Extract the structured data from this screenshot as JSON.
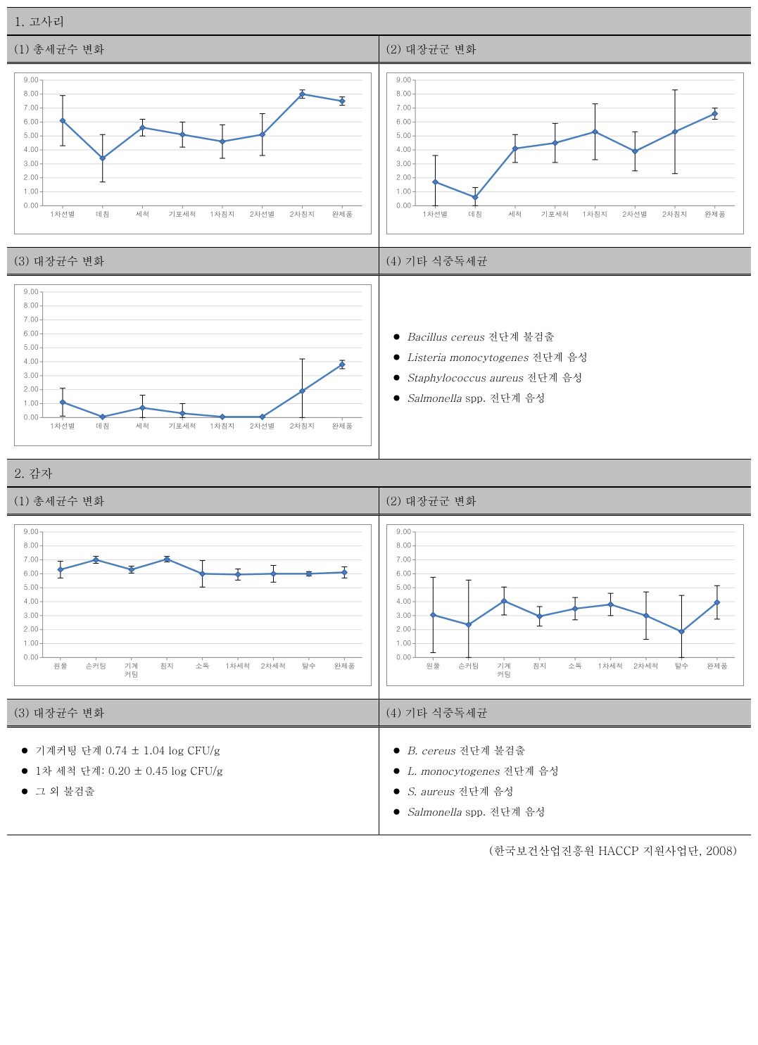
{
  "sections": {
    "s1": {
      "title": "1. 고사리"
    },
    "s2": {
      "title": "2. 감자"
    }
  },
  "headers": {
    "h1": "(1) 총세균수 변화",
    "h2": "(2) 대장균군 변화",
    "h3": "(3) 대장균수 변화",
    "h4": "(4) 기타 식중독세균"
  },
  "chart1_1": {
    "ylim": [
      0,
      9
    ],
    "ystep": 1,
    "xlabels": [
      "1차선별",
      "데침",
      "세척",
      "기포세척",
      "1차침지",
      "2차선별",
      "2차침지",
      "완제품"
    ],
    "values": [
      6.1,
      3.4,
      5.6,
      5.1,
      4.6,
      5.1,
      8.0,
      7.5
    ],
    "err": [
      1.8,
      1.7,
      0.6,
      0.9,
      1.2,
      1.5,
      0.3,
      0.3
    ],
    "line_color": "#4a7ebb",
    "bg": "#ffffff",
    "grid": "#d9d9d9",
    "label_fs": 10
  },
  "chart1_2": {
    "ylim": [
      0,
      9
    ],
    "ystep": 1,
    "xlabels": [
      "1차선별",
      "데침",
      "세척",
      "기포세척",
      "1차침지",
      "2차선별",
      "2차침지",
      "완제품"
    ],
    "values": [
      1.7,
      0.6,
      4.1,
      4.5,
      5.3,
      3.9,
      5.3,
      6.6
    ],
    "err": [
      1.9,
      0.7,
      1.0,
      1.4,
      2.0,
      1.4,
      3.0,
      0.4
    ],
    "line_color": "#4a7ebb",
    "bg": "#ffffff",
    "grid": "#d9d9d9",
    "label_fs": 10
  },
  "chart1_3": {
    "ylim": [
      0,
      9
    ],
    "ystep": 1,
    "xlabels": [
      "1차선별",
      "데침",
      "세척",
      "기포세척",
      "1차침지",
      "2차선별",
      "2차침지",
      "완제품"
    ],
    "values": [
      1.1,
      0.05,
      0.7,
      0.3,
      0.05,
      0.05,
      1.9,
      3.8
    ],
    "err": [
      1.0,
      0.0,
      0.9,
      0.7,
      0.0,
      0.0,
      2.3,
      0.3
    ],
    "line_color": "#4a7ebb",
    "bg": "#ffffff",
    "grid": "#d9d9d9",
    "label_fs": 10
  },
  "text1_4": [
    {
      "italic": "Bacillus cereus",
      "rest": " 전단계 불검출"
    },
    {
      "italic": "Listeria monocytogenes",
      "rest": " 전단계 음성"
    },
    {
      "italic": "Staphylococcus aureus",
      "rest": " 전단계 음성"
    },
    {
      "italic": "Salmonella",
      "rest": " spp. 전단계 음성"
    }
  ],
  "chart2_1": {
    "ylim": [
      0,
      9
    ],
    "ystep": 1,
    "xlabels": [
      "원물",
      "손커팅",
      "기계\n커팅",
      "침지",
      "소독",
      "1차세척",
      "2차세척",
      "탈수",
      "완제품"
    ],
    "values": [
      6.3,
      7.0,
      6.3,
      7.05,
      6.0,
      5.95,
      6.0,
      6.0,
      6.1
    ],
    "err": [
      0.6,
      0.25,
      0.25,
      0.2,
      0.95,
      0.4,
      0.6,
      0.15,
      0.4
    ],
    "line_color": "#4a7ebb",
    "bg": "#ffffff",
    "grid": "#d9d9d9",
    "label_fs": 10
  },
  "chart2_2": {
    "ylim": [
      0,
      9
    ],
    "ystep": 1,
    "xlabels": [
      "원물",
      "손커팅",
      "기계\n커팅",
      "침지",
      "소독",
      "1차세척",
      "2차세척",
      "탈수",
      "완제품"
    ],
    "values": [
      3.05,
      2.35,
      4.05,
      2.95,
      3.5,
      3.8,
      3.0,
      1.85,
      3.95
    ],
    "err": [
      2.7,
      3.2,
      1.0,
      0.7,
      0.8,
      0.8,
      1.7,
      2.6,
      1.2
    ],
    "line_color": "#4a7ebb",
    "bg": "#ffffff",
    "grid": "#d9d9d9",
    "label_fs": 10
  },
  "text2_3": [
    {
      "italic": "",
      "rest": "기계커팅 단계 0.74 ± 1.04 log CFU/g"
    },
    {
      "italic": "",
      "rest": "1차 세척 단계: 0.20 ± 0.45 log CFU/g"
    },
    {
      "italic": "",
      "rest": "그 외 불검출"
    }
  ],
  "text2_4": [
    {
      "italic": "B. cereus",
      "rest": " 전단계 불검출"
    },
    {
      "italic": "L. monocytogenes",
      "rest": " 전단계 음성"
    },
    {
      "italic": "S. aureus",
      "rest": " 전단계 음성"
    },
    {
      "italic": "Salmonella",
      "rest": " spp. 전단계 음성"
    }
  ],
  "footer": "(한국보건산업진흥원 HACCP 지원사업단, 2008)"
}
